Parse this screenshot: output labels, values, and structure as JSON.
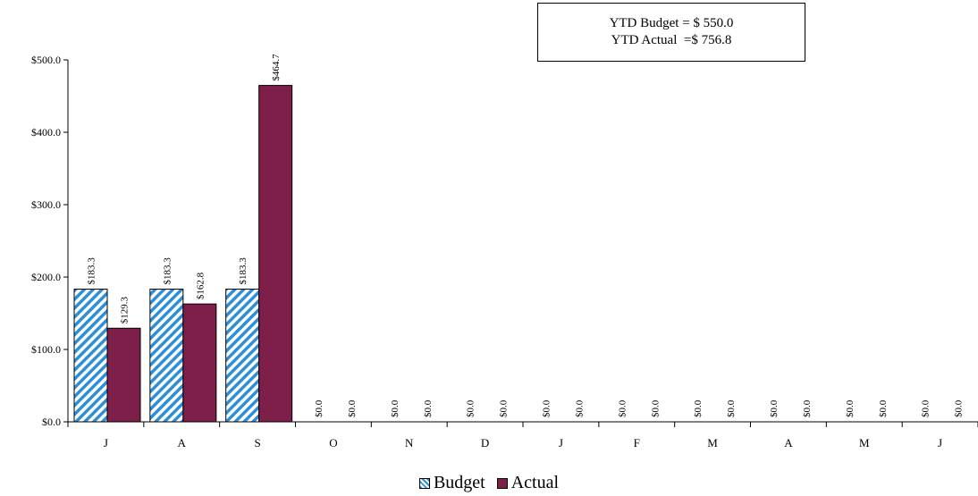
{
  "chart_data": {
    "type": "bar",
    "categories": [
      "J",
      "A",
      "S",
      "O",
      "N",
      "D",
      "J",
      "F",
      "M",
      "A",
      "M",
      "J"
    ],
    "series": [
      {
        "name": "Budget",
        "values": [
          183.3,
          183.3,
          183.3,
          0,
          0,
          0,
          0,
          0,
          0,
          0,
          0,
          0
        ],
        "labels": [
          "$183.3",
          "$183.3",
          "$183.3",
          "$0.0",
          "$0.0",
          "$0.0",
          "$0.0",
          "$0.0",
          "$0.0",
          "$0.0",
          "$0.0",
          "$0.0"
        ]
      },
      {
        "name": "Actual",
        "values": [
          129.3,
          162.8,
          464.7,
          0,
          0,
          0,
          0,
          0,
          0,
          0,
          0,
          0
        ],
        "labels": [
          "$129.3",
          "$162.8",
          "$464.7",
          "$0.0",
          "$0.0",
          "$0.0",
          "$0.0",
          "$0.0",
          "$0.0",
          "$0.0",
          "$0.0",
          "$0.0"
        ]
      }
    ],
    "ylim": [
      0,
      500
    ],
    "yticks": [
      0,
      100,
      200,
      300,
      400,
      500
    ],
    "ytick_labels": [
      "$0.0",
      "$100.0",
      "$200.0",
      "$300.0",
      "$400.0",
      "$500.0"
    ],
    "grid": false,
    "legend_position": "bottom-center",
    "colors": {
      "Budget": "#2f8fd6",
      "Actual": "#7e1f4a"
    }
  },
  "summary_box": {
    "line1": "YTD Budget = $ 550.0",
    "line2": "YTD Actual  =$ 756.8"
  },
  "legend": {
    "budget": "Budget",
    "actual": "Actual"
  }
}
